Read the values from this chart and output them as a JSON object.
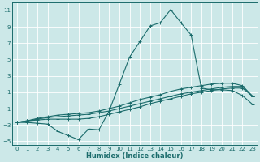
{
  "xlabel": "Humidex (Indice chaleur)",
  "ylabel": "",
  "background_color": "#cce8e8",
  "grid_color": "#ffffff",
  "line_color": "#1a6b6b",
  "xlim": [
    -0.5,
    23.5
  ],
  "ylim": [
    -5.5,
    12.0
  ],
  "xticks": [
    0,
    1,
    2,
    3,
    4,
    5,
    6,
    7,
    8,
    9,
    10,
    11,
    12,
    13,
    14,
    15,
    16,
    17,
    18,
    19,
    20,
    21,
    22,
    23
  ],
  "yticks": [
    -5,
    -3,
    -1,
    1,
    3,
    5,
    7,
    9,
    11
  ],
  "line1_x": [
    0,
    1,
    2,
    3,
    4,
    5,
    6,
    7,
    8,
    9,
    10,
    11,
    12,
    13,
    14,
    15,
    16,
    17,
    18,
    19,
    20,
    21,
    22,
    23
  ],
  "line1_y": [
    -2.7,
    -2.7,
    -2.8,
    -2.9,
    -3.8,
    -4.3,
    -4.8,
    -3.5,
    -3.6,
    -1.3,
    2.0,
    5.3,
    7.2,
    9.1,
    9.5,
    11.1,
    9.5,
    8.0,
    1.5,
    1.3,
    1.3,
    1.2,
    0.6,
    -0.5
  ],
  "line2_x": [
    0,
    1,
    2,
    3,
    4,
    5,
    6,
    7,
    8,
    9,
    10,
    11,
    12,
    13,
    14,
    15,
    16,
    17,
    18,
    19,
    20,
    21,
    22,
    23
  ],
  "line2_y": [
    -2.7,
    -2.5,
    -2.4,
    -2.3,
    -2.3,
    -2.3,
    -2.3,
    -2.2,
    -2.0,
    -1.7,
    -1.4,
    -1.1,
    -0.8,
    -0.4,
    -0.1,
    0.2,
    0.5,
    0.8,
    1.0,
    1.2,
    1.4,
    1.5,
    1.5,
    0.5
  ],
  "line3_x": [
    0,
    1,
    2,
    3,
    4,
    5,
    6,
    7,
    8,
    9,
    10,
    11,
    12,
    13,
    14,
    15,
    16,
    17,
    18,
    19,
    20,
    21,
    22,
    23
  ],
  "line3_y": [
    -2.7,
    -2.5,
    -2.3,
    -2.1,
    -2.0,
    -1.9,
    -1.8,
    -1.7,
    -1.5,
    -1.3,
    -1.0,
    -0.7,
    -0.4,
    -0.1,
    0.2,
    0.5,
    0.8,
    1.0,
    1.2,
    1.4,
    1.6,
    1.7,
    1.7,
    0.5
  ],
  "line4_x": [
    0,
    1,
    2,
    3,
    4,
    5,
    6,
    7,
    8,
    9,
    10,
    11,
    12,
    13,
    14,
    15,
    16,
    17,
    18,
    19,
    20,
    21,
    22,
    23
  ],
  "line4_y": [
    -2.7,
    -2.5,
    -2.2,
    -2.0,
    -1.8,
    -1.7,
    -1.6,
    -1.5,
    -1.3,
    -1.0,
    -0.7,
    -0.3,
    0.1,
    0.4,
    0.7,
    1.1,
    1.4,
    1.6,
    1.8,
    2.0,
    2.1,
    2.1,
    1.8,
    0.5
  ],
  "tick_fontsize": 5.0,
  "xlabel_fontsize": 6.0,
  "linewidth": 0.8,
  "markersize": 2.5
}
